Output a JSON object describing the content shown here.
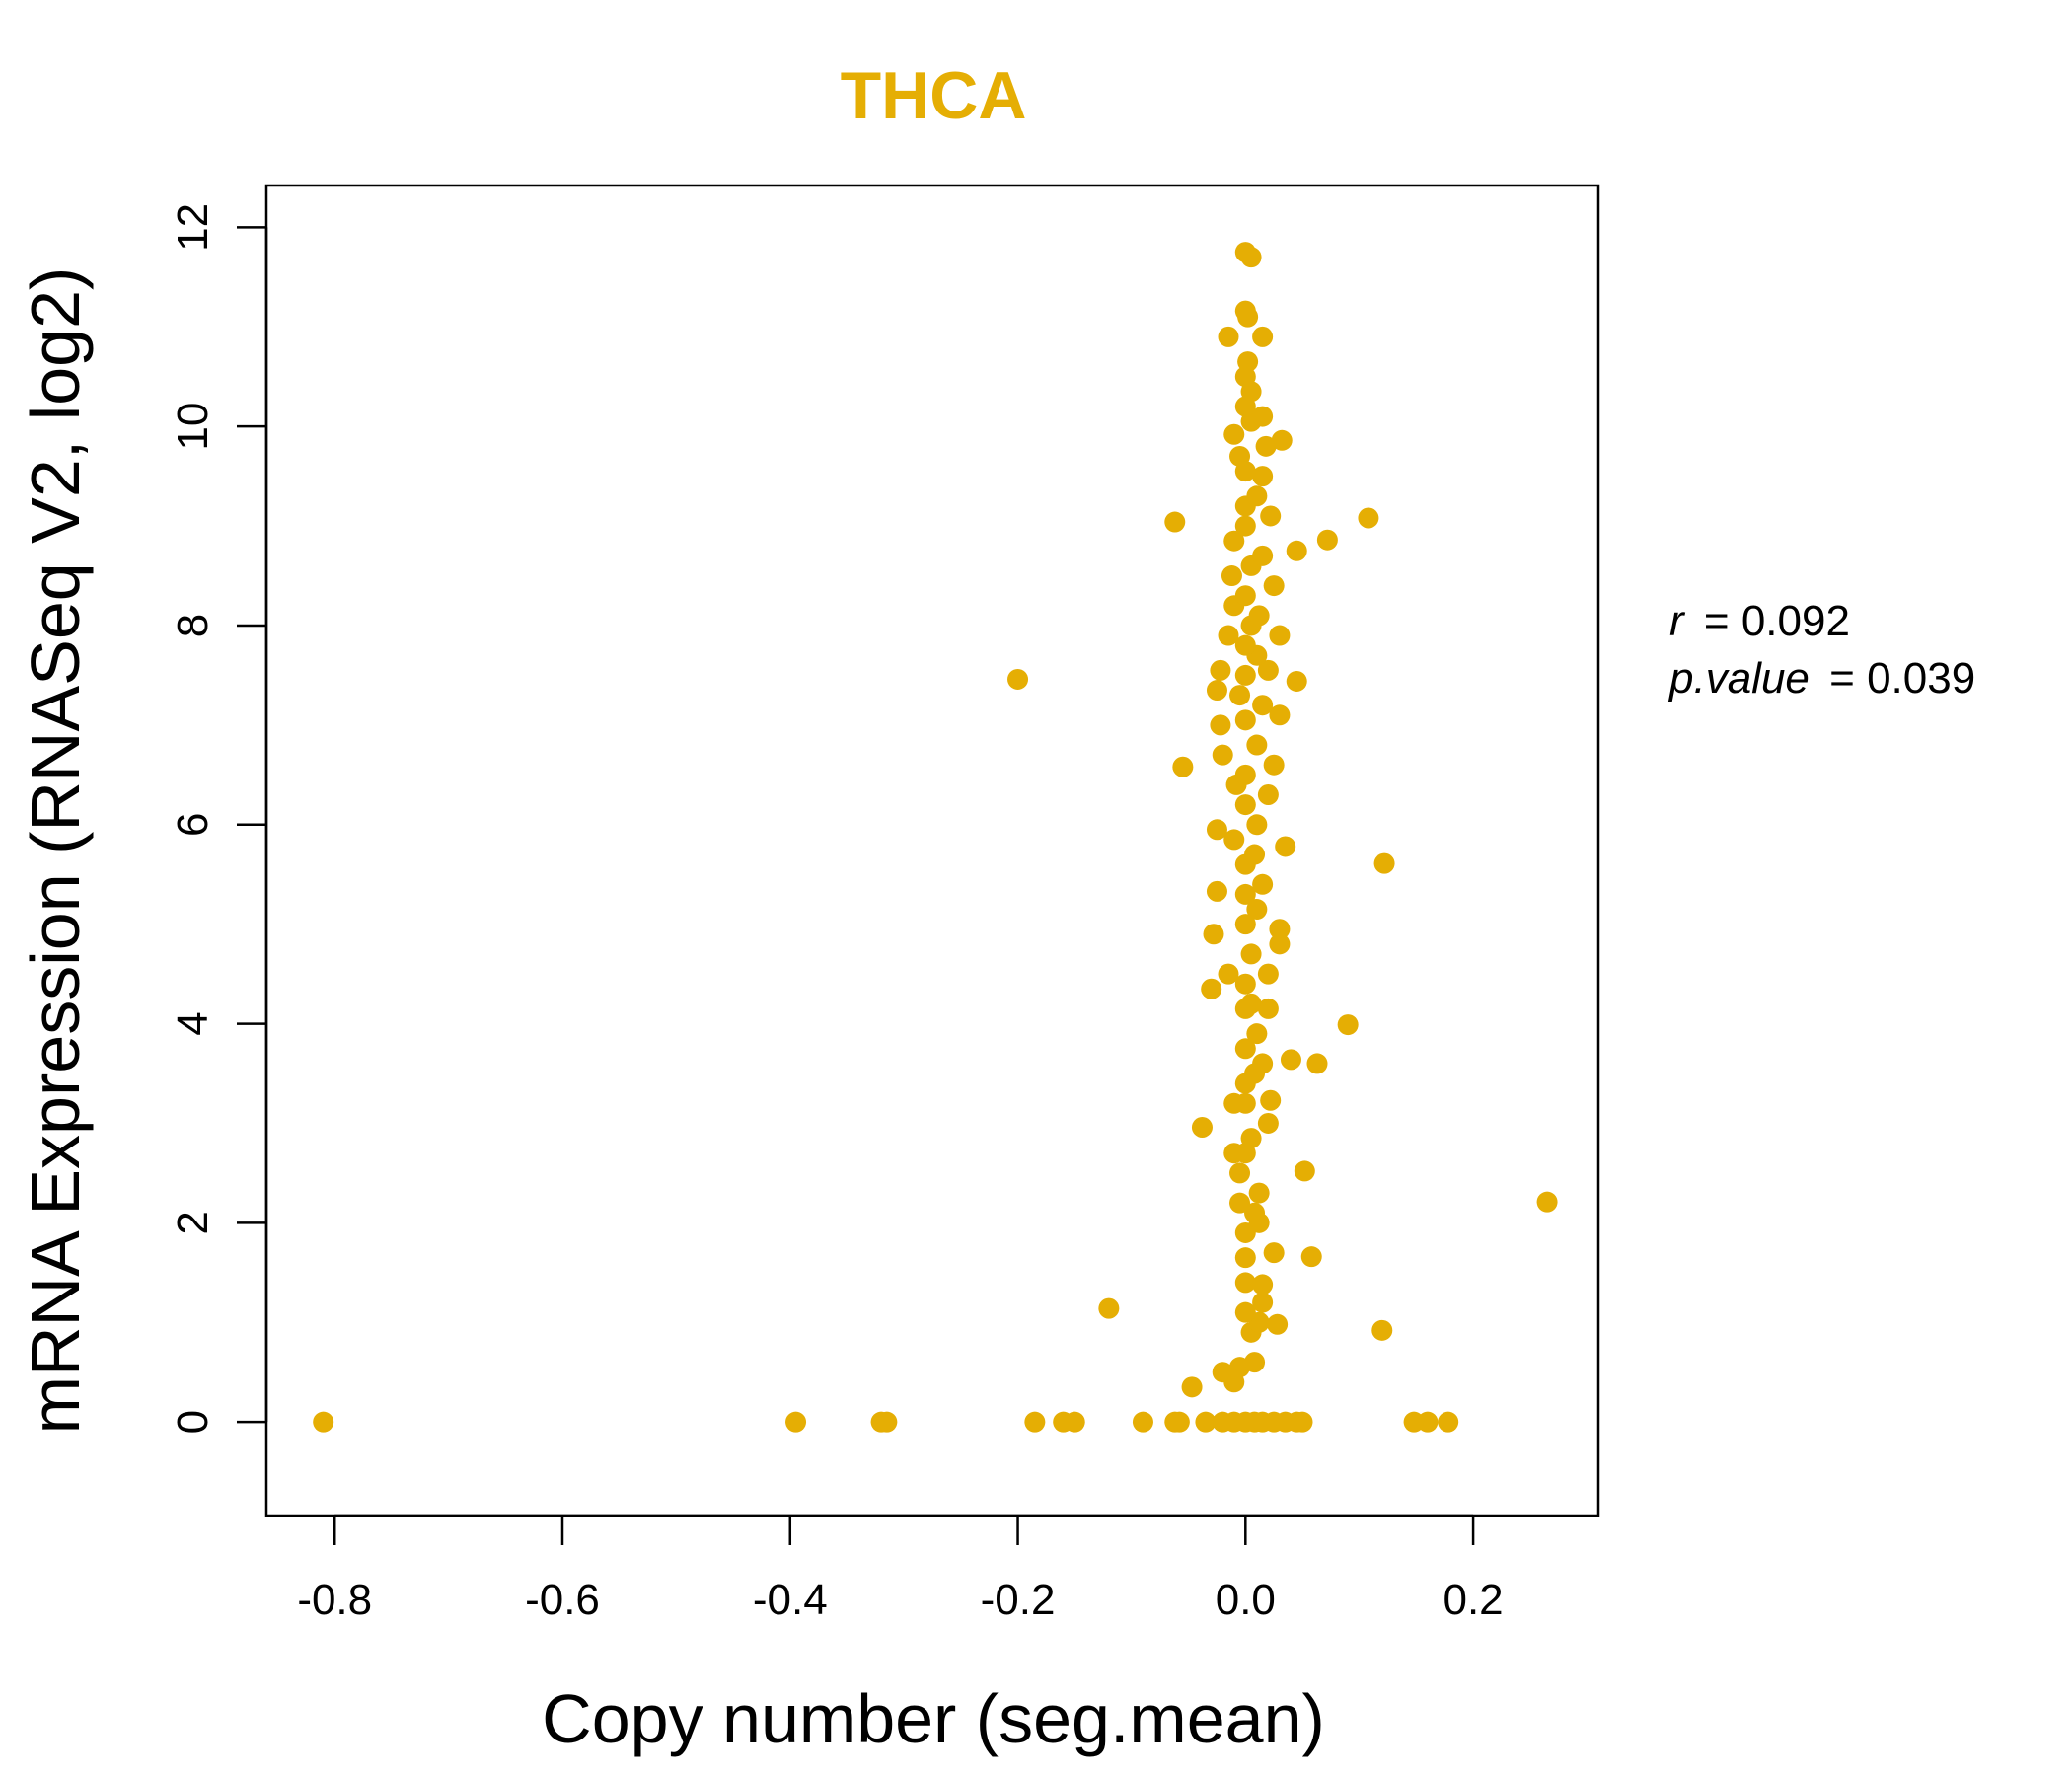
{
  "chart_data": {
    "type": "scatter",
    "title": "THCA",
    "xlabel": "Copy number (seg.mean)",
    "ylabel": "mRNA Expression (RNASeq V2, log2)",
    "xlim": [
      -0.86,
      0.31
    ],
    "ylim": [
      -0.94,
      12.42
    ],
    "xticks": [
      -0.8,
      -0.6,
      -0.4,
      -0.2,
      0.0,
      0.2
    ],
    "xtick_labels": [
      "-0.8",
      "-0.6",
      "-0.4",
      "-0.2",
      "0.0",
      "0.2"
    ],
    "yticks": [
      0,
      2,
      4,
      6,
      8,
      10,
      12
    ],
    "ytick_labels": [
      "0",
      "2",
      "4",
      "6",
      "8",
      "10",
      "12"
    ],
    "color": "#E5AE04",
    "annotation": {
      "r_label": "r",
      "r_value": "0.092",
      "p_label": "p.value",
      "p_value": "0.039"
    },
    "points": [
      [
        -0.81,
        0.0
      ],
      [
        -0.395,
        0.0
      ],
      [
        -0.32,
        0.0
      ],
      [
        -0.315,
        0.0
      ],
      [
        -0.185,
        0.0
      ],
      [
        -0.16,
        0.0
      ],
      [
        -0.15,
        0.0
      ],
      [
        -0.09,
        0.0
      ],
      [
        -0.062,
        0.0
      ],
      [
        -0.058,
        0.0
      ],
      [
        -0.035,
        0.0
      ],
      [
        -0.02,
        0.0
      ],
      [
        -0.01,
        0.0
      ],
      [
        0.0,
        0.0
      ],
      [
        0.008,
        0.0
      ],
      [
        0.015,
        0.0
      ],
      [
        0.025,
        0.0
      ],
      [
        0.035,
        0.0
      ],
      [
        0.045,
        0.0
      ],
      [
        0.05,
        0.0
      ],
      [
        0.148,
        0.0
      ],
      [
        0.16,
        0.0
      ],
      [
        0.178,
        0.0
      ],
      [
        -0.047,
        0.35
      ],
      [
        -0.01,
        0.4
      ],
      [
        -0.005,
        0.55
      ],
      [
        0.008,
        0.6
      ],
      [
        -0.02,
        0.5
      ],
      [
        0.005,
        0.9
      ],
      [
        0.012,
        1.0
      ],
      [
        0.028,
        0.98
      ],
      [
        0.12,
        0.92
      ],
      [
        0.0,
        1.1
      ],
      [
        0.015,
        1.2
      ],
      [
        -0.12,
        1.14
      ],
      [
        0.0,
        1.4
      ],
      [
        0.015,
        1.38
      ],
      [
        0.0,
        1.65
      ],
      [
        0.025,
        1.7
      ],
      [
        0.058,
        1.66
      ],
      [
        0.0,
        1.9
      ],
      [
        0.012,
        2.0
      ],
      [
        0.008,
        2.1
      ],
      [
        -0.005,
        2.2
      ],
      [
        0.012,
        2.3
      ],
      [
        0.265,
        2.21
      ],
      [
        -0.005,
        2.5
      ],
      [
        0.052,
        2.52
      ],
      [
        0.0,
        2.7
      ],
      [
        -0.01,
        2.7
      ],
      [
        0.005,
        2.85
      ],
      [
        0.02,
        3.0
      ],
      [
        -0.038,
        2.96
      ],
      [
        0.0,
        3.2
      ],
      [
        -0.01,
        3.2
      ],
      [
        0.022,
        3.23
      ],
      [
        0.0,
        3.4
      ],
      [
        0.008,
        3.5
      ],
      [
        0.015,
        3.6
      ],
      [
        0.04,
        3.64
      ],
      [
        0.063,
        3.6
      ],
      [
        0.0,
        3.75
      ],
      [
        0.01,
        3.9
      ],
      [
        0.09,
        3.99
      ],
      [
        0.0,
        4.15
      ],
      [
        0.02,
        4.15
      ],
      [
        -0.03,
        4.35
      ],
      [
        0.005,
        4.2
      ],
      [
        0.0,
        4.4
      ],
      [
        -0.015,
        4.5
      ],
      [
        0.02,
        4.5
      ],
      [
        0.005,
        4.7
      ],
      [
        0.03,
        4.8
      ],
      [
        -0.028,
        4.9
      ],
      [
        0.03,
        4.95
      ],
      [
        0.0,
        5.0
      ],
      [
        0.01,
        5.15
      ],
      [
        0.0,
        5.3
      ],
      [
        -0.025,
        5.33
      ],
      [
        0.015,
        5.4
      ],
      [
        0.0,
        5.6
      ],
      [
        0.008,
        5.7
      ],
      [
        0.035,
        5.78
      ],
      [
        0.122,
        5.61
      ],
      [
        -0.01,
        5.85
      ],
      [
        -0.025,
        5.95
      ],
      [
        0.01,
        6.0
      ],
      [
        0.0,
        6.2
      ],
      [
        0.02,
        6.3
      ],
      [
        -0.008,
        6.4
      ],
      [
        0.0,
        6.5
      ],
      [
        0.025,
        6.6
      ],
      [
        -0.055,
        6.58
      ],
      [
        -0.02,
        6.7
      ],
      [
        0.01,
        6.8
      ],
      [
        -0.022,
        7.0
      ],
      [
        0.0,
        7.05
      ],
      [
        0.03,
        7.1
      ],
      [
        0.015,
        7.2
      ],
      [
        -0.005,
        7.3
      ],
      [
        -0.025,
        7.35
      ],
      [
        0.045,
        7.44
      ],
      [
        -0.2,
        7.46
      ],
      [
        0.0,
        7.5
      ],
      [
        0.02,
        7.55
      ],
      [
        -0.022,
        7.55
      ],
      [
        0.01,
        7.7
      ],
      [
        0.0,
        7.8
      ],
      [
        -0.015,
        7.9
      ],
      [
        0.03,
        7.9
      ],
      [
        0.005,
        8.0
      ],
      [
        0.012,
        8.1
      ],
      [
        -0.01,
        8.2
      ],
      [
        0.0,
        8.3
      ],
      [
        0.025,
        8.4
      ],
      [
        -0.012,
        8.5
      ],
      [
        0.005,
        8.6
      ],
      [
        0.015,
        8.7
      ],
      [
        0.045,
        8.75
      ],
      [
        0.072,
        8.86
      ],
      [
        -0.01,
        8.85
      ],
      [
        0.0,
        9.0
      ],
      [
        0.022,
        9.1
      ],
      [
        0.108,
        9.08
      ],
      [
        -0.062,
        9.04
      ],
      [
        0.0,
        9.2
      ],
      [
        0.01,
        9.3
      ],
      [
        0.015,
        9.5
      ],
      [
        0.0,
        9.55
      ],
      [
        -0.005,
        9.7
      ],
      [
        0.018,
        9.8
      ],
      [
        0.032,
        9.86
      ],
      [
        -0.01,
        9.92
      ],
      [
        0.005,
        10.05
      ],
      [
        0.015,
        10.1
      ],
      [
        0.0,
        10.2
      ],
      [
        0.005,
        10.35
      ],
      [
        0.0,
        10.5
      ],
      [
        0.002,
        10.65
      ],
      [
        -0.015,
        10.9
      ],
      [
        0.015,
        10.9
      ],
      [
        0.002,
        11.1
      ],
      [
        0.0,
        11.16
      ],
      [
        0.0,
        11.75
      ],
      [
        0.005,
        11.7
      ]
    ]
  }
}
